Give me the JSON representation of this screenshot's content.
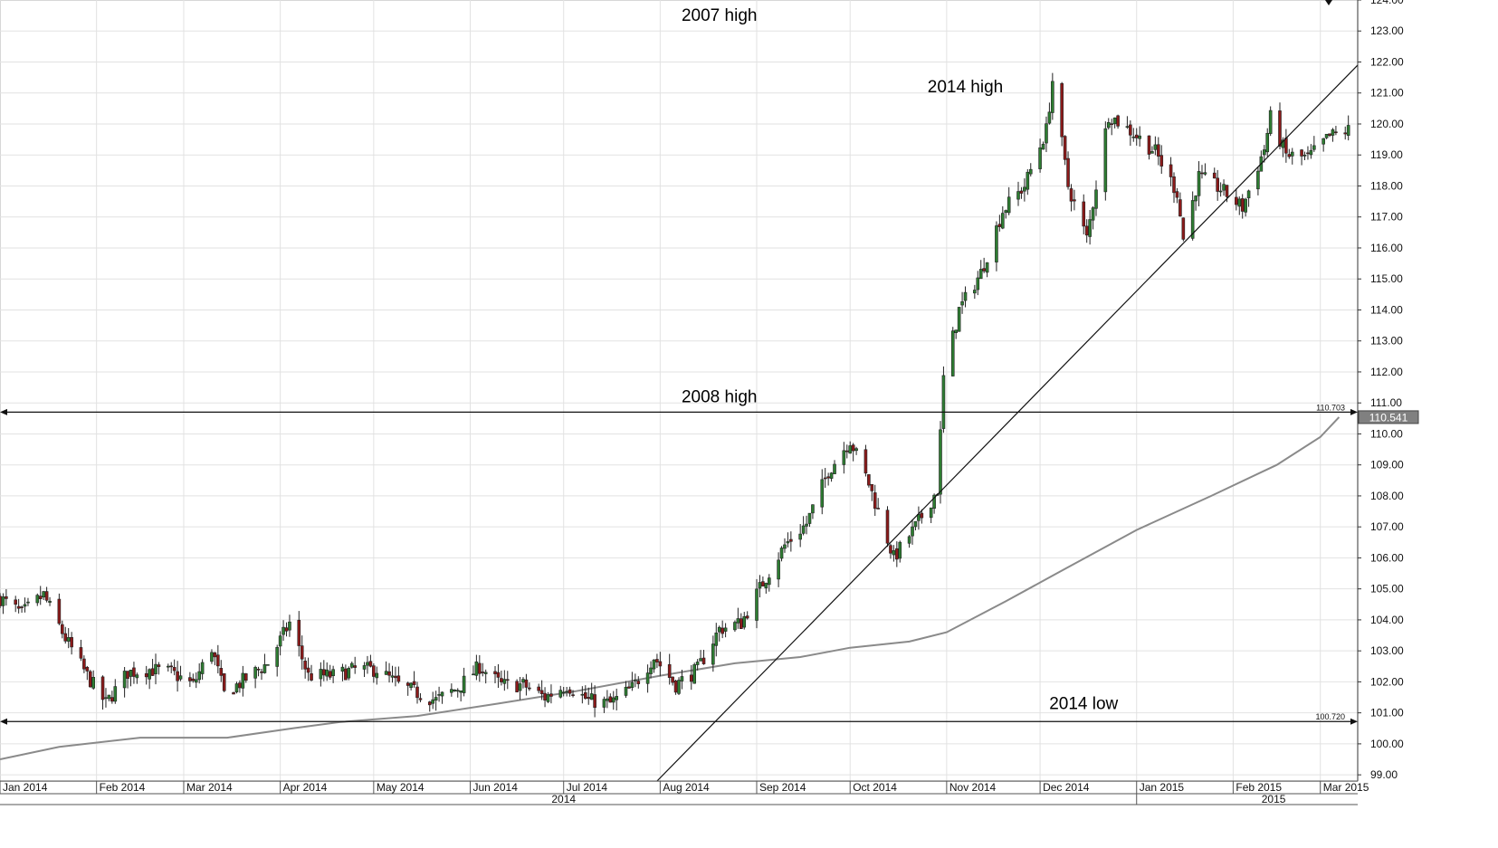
{
  "chart_data": {
    "type": "candlestick",
    "title": "",
    "xlabel": "",
    "ylabel": "",
    "ylim": [
      98.8,
      124.0
    ],
    "y_ticks": [
      "99.00",
      "100.00",
      "101.00",
      "102.00",
      "103.00",
      "104.00",
      "105.00",
      "106.00",
      "107.00",
      "108.00",
      "109.00",
      "110.00",
      "111.00",
      "112.00",
      "113.00",
      "114.00",
      "115.00",
      "116.00",
      "117.00",
      "118.00",
      "119.00",
      "120.00",
      "121.00",
      "122.00",
      "123.00",
      "124.00"
    ],
    "x_range": [
      "2014-01-01",
      "2015-03-13"
    ],
    "grid": true,
    "month_labels": [
      {
        "date": "2014-01-01",
        "label": "Jan 2014"
      },
      {
        "date": "2014-02-01",
        "label": "Feb 2014"
      },
      {
        "date": "2014-03-01",
        "label": "Mar 2014"
      },
      {
        "date": "2014-04-01",
        "label": "Apr 2014"
      },
      {
        "date": "2014-05-01",
        "label": "May 2014"
      },
      {
        "date": "2014-06-01",
        "label": "Jun 2014"
      },
      {
        "date": "2014-07-01",
        "label": "Jul 2014"
      },
      {
        "date": "2014-08-01",
        "label": "Aug 2014"
      },
      {
        "date": "2014-09-01",
        "label": "Sep 2014"
      },
      {
        "date": "2014-10-01",
        "label": "Oct 2014"
      },
      {
        "date": "2014-11-01",
        "label": "Nov 2014"
      },
      {
        "date": "2014-12-01",
        "label": "Dec 2014"
      },
      {
        "date": "2015-01-01",
        "label": "Jan 2015"
      },
      {
        "date": "2015-02-01",
        "label": "Feb 2015"
      },
      {
        "date": "2015-03-01",
        "label": "Mar 2015"
      }
    ],
    "year_labels": [
      {
        "date": "2014-07-01",
        "label": "2014"
      },
      {
        "date": "2015-02-14",
        "label": "2015"
      }
    ],
    "year_divider_date": "2015-01-01",
    "price_path": [
      {
        "date": "2014-01-01",
        "value": 104.7
      },
      {
        "date": "2014-01-08",
        "value": 104.2
      },
      {
        "date": "2014-01-15",
        "value": 104.8
      },
      {
        "date": "2014-01-22",
        "value": 103.4
      },
      {
        "date": "2014-01-29",
        "value": 102.2
      },
      {
        "date": "2014-02-04",
        "value": 101.3
      },
      {
        "date": "2014-02-11",
        "value": 102.3
      },
      {
        "date": "2014-02-18",
        "value": 102.4
      },
      {
        "date": "2014-02-25",
        "value": 102.3
      },
      {
        "date": "2014-03-04",
        "value": 101.9
      },
      {
        "date": "2014-03-10",
        "value": 103.1
      },
      {
        "date": "2014-03-14",
        "value": 101.6
      },
      {
        "date": "2014-03-21",
        "value": 102.1
      },
      {
        "date": "2014-03-28",
        "value": 102.6
      },
      {
        "date": "2014-04-04",
        "value": 103.9
      },
      {
        "date": "2014-04-10",
        "value": 102.2
      },
      {
        "date": "2014-04-18",
        "value": 102.2
      },
      {
        "date": "2014-04-25",
        "value": 102.4
      },
      {
        "date": "2014-05-02",
        "value": 102.4
      },
      {
        "date": "2014-05-09",
        "value": 101.9
      },
      {
        "date": "2014-05-16",
        "value": 101.6
      },
      {
        "date": "2014-05-21",
        "value": 101.4
      },
      {
        "date": "2014-05-28",
        "value": 101.8
      },
      {
        "date": "2014-06-04",
        "value": 102.5
      },
      {
        "date": "2014-06-11",
        "value": 101.9
      },
      {
        "date": "2014-06-18",
        "value": 101.9
      },
      {
        "date": "2014-06-25",
        "value": 101.5
      },
      {
        "date": "2014-07-02",
        "value": 101.9
      },
      {
        "date": "2014-07-09",
        "value": 101.4
      },
      {
        "date": "2014-07-16",
        "value": 101.3
      },
      {
        "date": "2014-07-23",
        "value": 101.8
      },
      {
        "date": "2014-07-30",
        "value": 102.8
      },
      {
        "date": "2014-08-06",
        "value": 101.9
      },
      {
        "date": "2014-08-13",
        "value": 102.4
      },
      {
        "date": "2014-08-20",
        "value": 103.7
      },
      {
        "date": "2014-08-27",
        "value": 103.9
      },
      {
        "date": "2014-09-03",
        "value": 105.2
      },
      {
        "date": "2014-09-10",
        "value": 106.4
      },
      {
        "date": "2014-09-17",
        "value": 107.1
      },
      {
        "date": "2014-09-24",
        "value": 108.8
      },
      {
        "date": "2014-10-01",
        "value": 109.8
      },
      {
        "date": "2014-10-07",
        "value": 108.4
      },
      {
        "date": "2014-10-15",
        "value": 106.0
      },
      {
        "date": "2014-10-22",
        "value": 107.0
      },
      {
        "date": "2014-10-29",
        "value": 108.2
      },
      {
        "date": "2014-10-31",
        "value": 111.8
      },
      {
        "date": "2014-11-05",
        "value": 114.0
      },
      {
        "date": "2014-11-12",
        "value": 115.2
      },
      {
        "date": "2014-11-19",
        "value": 117.2
      },
      {
        "date": "2014-11-26",
        "value": 118.0
      },
      {
        "date": "2014-12-03",
        "value": 119.8
      },
      {
        "date": "2014-12-05",
        "value": 121.4
      },
      {
        "date": "2014-12-10",
        "value": 118.0
      },
      {
        "date": "2014-12-16",
        "value": 116.3
      },
      {
        "date": "2014-12-23",
        "value": 120.3
      },
      {
        "date": "2014-12-31",
        "value": 119.7
      },
      {
        "date": "2015-01-07",
        "value": 119.1
      },
      {
        "date": "2015-01-14",
        "value": 117.8
      },
      {
        "date": "2015-01-16",
        "value": 116.3
      },
      {
        "date": "2015-01-21",
        "value": 118.3
      },
      {
        "date": "2015-01-28",
        "value": 117.9
      },
      {
        "date": "2015-02-04",
        "value": 117.3
      },
      {
        "date": "2015-02-11",
        "value": 119.2
      },
      {
        "date": "2015-02-13",
        "value": 120.2
      },
      {
        "date": "2015-02-18",
        "value": 119.0
      },
      {
        "date": "2015-02-25",
        "value": 118.9
      },
      {
        "date": "2015-03-04",
        "value": 119.6
      },
      {
        "date": "2015-03-10",
        "value": 119.8
      }
    ],
    "moving_average": [
      {
        "date": "2014-01-01",
        "value": 99.5
      },
      {
        "date": "2014-01-20",
        "value": 99.9
      },
      {
        "date": "2014-02-15",
        "value": 100.2
      },
      {
        "date": "2014-03-15",
        "value": 100.2
      },
      {
        "date": "2014-04-05",
        "value": 100.5
      },
      {
        "date": "2014-04-20",
        "value": 100.7
      },
      {
        "date": "2014-05-15",
        "value": 100.9
      },
      {
        "date": "2014-06-10",
        "value": 101.3
      },
      {
        "date": "2014-07-05",
        "value": 101.7
      },
      {
        "date": "2014-08-01",
        "value": 102.2
      },
      {
        "date": "2014-08-25",
        "value": 102.6
      },
      {
        "date": "2014-09-15",
        "value": 102.8
      },
      {
        "date": "2014-10-01",
        "value": 103.1
      },
      {
        "date": "2014-10-20",
        "value": 103.3
      },
      {
        "date": "2014-11-01",
        "value": 103.6
      },
      {
        "date": "2014-11-20",
        "value": 104.6
      },
      {
        "date": "2014-12-10",
        "value": 105.7
      },
      {
        "date": "2015-01-01",
        "value": 106.9
      },
      {
        "date": "2015-01-25",
        "value": 108.0
      },
      {
        "date": "2015-02-15",
        "value": 109.0
      },
      {
        "date": "2015-03-01",
        "value": 109.9
      },
      {
        "date": "2015-03-07",
        "value": 110.541
      }
    ],
    "trendline": [
      {
        "date": "2014-07-31",
        "value": 98.8
      },
      {
        "date": "2015-03-13",
        "value": 121.9
      }
    ],
    "horizontal_lines": [
      {
        "value": 110.703,
        "label": "110.703"
      },
      {
        "value": 100.72,
        "label": "100.720"
      }
    ],
    "current_price": "110.541",
    "annotations": [
      {
        "text": "2007 high",
        "date": "2014-08-20",
        "value": 123.5
      },
      {
        "text": "2014 high",
        "date": "2014-11-07",
        "value": 121.2
      },
      {
        "text": "2008 high",
        "date": "2014-08-20",
        "value": 111.2
      },
      {
        "text": "2014 low",
        "date": "2014-12-15",
        "value": 101.3
      }
    ]
  }
}
